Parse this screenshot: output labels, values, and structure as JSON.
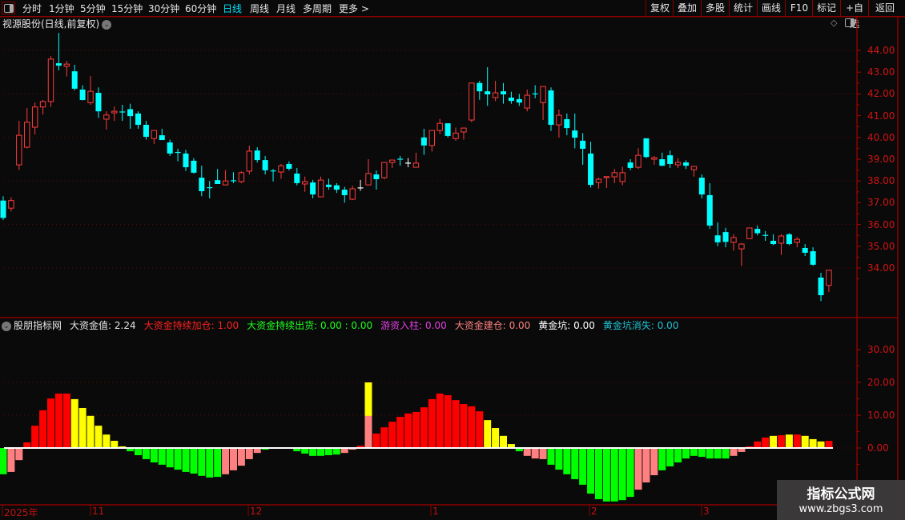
{
  "toolbar": {
    "periods": [
      "分时",
      "1分钟",
      "5分钟",
      "15分钟",
      "30分钟",
      "60分钟",
      "日线",
      "周线",
      "月线",
      "多周期",
      "更多 >"
    ],
    "active_period": "日线",
    "buttons": [
      "复权",
      "叠加",
      "多股",
      "统计",
      "画线",
      "F10",
      "标记",
      "+自选",
      "返回"
    ]
  },
  "chart": {
    "title": "视源股份(日线,前复权)",
    "price_ticks": [
      "44.00",
      "43.00",
      "42.00",
      "41.00",
      "40.00",
      "39.00",
      "38.00",
      "37.00",
      "36.00",
      "35.00",
      "34.00"
    ],
    "up_color": "#ff3c3c",
    "down_color": "#00ffff",
    "candles": [
      [
        37.1,
        37.3,
        36.2,
        36.3
      ],
      [
        36.75,
        37.25,
        36.6,
        37.1
      ],
      [
        38.74,
        40.76,
        38.5,
        40.1
      ],
      [
        39.55,
        41.35,
        39.5,
        40.7
      ],
      [
        40.47,
        41.6,
        40.14,
        41.4
      ],
      [
        41.4,
        41.72,
        41.06,
        41.65
      ],
      [
        41.65,
        43.74,
        41.4,
        43.6
      ],
      [
        43.41,
        44.8,
        43.08,
        43.3
      ],
      [
        43.27,
        43.52,
        42.8,
        43.37
      ],
      [
        43.04,
        43.34,
        42.16,
        42.24
      ],
      [
        42.2,
        42.4,
        41.7,
        41.72
      ],
      [
        41.6,
        42.82,
        41.5,
        42.12
      ],
      [
        42.05,
        42.3,
        40.9,
        41.2
      ],
      [
        40.84,
        41.2,
        40.36,
        41.03
      ],
      [
        41.13,
        41.42,
        40.76,
        41.2
      ],
      [
        41.17,
        41.5,
        40.76,
        41.16
      ],
      [
        41.3,
        41.55,
        40.4,
        40.98
      ],
      [
        41.1,
        41.2,
        40.4,
        40.58
      ],
      [
        40.58,
        40.76,
        39.9,
        40.03
      ],
      [
        39.95,
        40.32,
        39.7,
        40.32
      ],
      [
        40.1,
        40.4,
        39.88,
        39.88
      ],
      [
        39.77,
        39.9,
        39.15,
        39.26
      ],
      [
        39.31,
        39.48,
        38.9,
        39.3
      ],
      [
        39.26,
        39.43,
        38.46,
        38.63
      ],
      [
        38.93,
        39.05,
        38.34,
        38.38
      ],
      [
        38.15,
        38.7,
        37.3,
        37.53
      ],
      [
        37.69,
        38.0,
        37.2,
        37.68
      ],
      [
        38.04,
        38.55,
        37.86,
        37.86
      ],
      [
        37.82,
        38.5,
        37.8,
        38.0
      ],
      [
        38.01,
        38.4,
        37.9,
        38.0
      ],
      [
        37.97,
        38.45,
        37.9,
        38.38
      ],
      [
        38.45,
        39.62,
        38.3,
        39.37
      ],
      [
        39.4,
        39.55,
        38.85,
        38.96
      ],
      [
        38.96,
        39.15,
        38.3,
        38.49
      ],
      [
        38.46,
        38.55,
        37.98,
        38.45
      ],
      [
        38.41,
        38.78,
        38.1,
        38.7
      ],
      [
        38.78,
        38.9,
        38.48,
        38.56
      ],
      [
        38.34,
        38.6,
        37.8,
        37.9
      ],
      [
        37.86,
        38.2,
        37.5,
        37.97
      ],
      [
        37.93,
        38.05,
        37.2,
        37.38
      ],
      [
        37.27,
        38.2,
        37.25,
        38.04
      ],
      [
        37.83,
        38.1,
        37.6,
        37.72
      ],
      [
        37.8,
        37.9,
        37.45,
        37.6
      ],
      [
        37.6,
        37.73,
        37.0,
        37.35
      ],
      [
        37.16,
        37.78,
        37.12,
        37.64
      ],
      [
        37.68,
        38.05,
        37.55,
        37.68
      ],
      [
        37.82,
        39.0,
        37.8,
        38.34
      ],
      [
        38.3,
        38.48,
        37.6,
        38.08
      ],
      [
        38.15,
        38.85,
        38.08,
        38.85
      ],
      [
        38.85,
        38.98,
        38.6,
        38.96
      ],
      [
        39.0,
        39.15,
        38.7,
        38.99
      ],
      [
        38.82,
        39.05,
        38.63,
        38.82
      ],
      [
        38.63,
        39.3,
        38.63,
        38.82
      ],
      [
        40.0,
        40.4,
        39.2,
        39.63
      ],
      [
        39.63,
        40.32,
        39.35,
        40.32
      ],
      [
        40.32,
        40.85,
        40.15,
        40.65
      ],
      [
        40.65,
        40.65,
        40.0,
        40.07
      ],
      [
        39.95,
        40.45,
        39.85,
        40.2
      ],
      [
        40.25,
        40.45,
        39.9,
        40.43
      ],
      [
        40.8,
        42.5,
        40.7,
        42.5
      ],
      [
        42.5,
        42.6,
        41.73,
        42.12
      ],
      [
        42.12,
        43.23,
        41.45,
        41.98
      ],
      [
        41.83,
        42.6,
        41.67,
        42.05
      ],
      [
        42.12,
        42.5,
        41.55,
        41.98
      ],
      [
        41.83,
        42.1,
        41.55,
        41.68
      ],
      [
        41.76,
        42.0,
        41.45,
        41.6
      ],
      [
        41.35,
        42.2,
        41.2,
        41.94
      ],
      [
        42.0,
        42.4,
        41.8,
        41.99
      ],
      [
        41.6,
        42.34,
        40.8,
        42.34
      ],
      [
        42.16,
        42.3,
        40.3,
        40.58
      ],
      [
        40.58,
        41.28,
        39.99,
        41.02
      ],
      [
        40.84,
        41.1,
        40.1,
        40.43
      ],
      [
        40.32,
        41.1,
        39.5,
        39.99
      ],
      [
        39.85,
        40.2,
        38.74,
        39.48
      ],
      [
        39.26,
        39.8,
        37.7,
        37.82
      ],
      [
        37.93,
        38.15,
        37.65,
        38.08
      ],
      [
        38.15,
        38.2,
        37.68,
        38.2
      ],
      [
        38.19,
        38.55,
        37.9,
        38.38
      ],
      [
        37.97,
        38.65,
        37.8,
        38.38
      ],
      [
        38.85,
        39.0,
        38.5,
        38.6
      ],
      [
        38.63,
        39.5,
        38.55,
        39.18
      ],
      [
        39.96,
        39.96,
        39.05,
        39.1
      ],
      [
        39.0,
        39.15,
        38.75,
        39.07
      ],
      [
        39.0,
        39.3,
        38.68,
        38.7
      ],
      [
        39.18,
        39.4,
        38.6,
        38.78
      ],
      [
        38.74,
        39.05,
        38.6,
        38.85
      ],
      [
        38.85,
        38.95,
        38.55,
        38.7
      ],
      [
        38.52,
        38.67,
        38.2,
        38.67
      ],
      [
        38.15,
        38.3,
        37.2,
        37.38
      ],
      [
        37.35,
        37.9,
        35.8,
        35.95
      ],
      [
        35.5,
        36.1,
        35.0,
        35.18
      ],
      [
        35.65,
        35.85,
        34.95,
        35.2
      ],
      [
        35.18,
        35.55,
        34.8,
        35.4
      ],
      [
        34.88,
        35.15,
        34.1,
        35.1
      ],
      [
        35.35,
        35.84,
        35.35,
        35.84
      ],
      [
        35.8,
        35.95,
        35.5,
        35.6
      ],
      [
        35.5,
        35.7,
        35.25,
        35.49
      ],
      [
        35.25,
        35.55,
        35.05,
        35.1
      ],
      [
        35.14,
        35.55,
        34.6,
        35.47
      ],
      [
        35.55,
        35.6,
        35.05,
        35.1
      ],
      [
        35.18,
        35.42,
        34.95,
        35.32
      ],
      [
        34.92,
        35.1,
        34.55,
        34.7
      ],
      [
        34.77,
        34.95,
        34.1,
        34.15
      ],
      [
        33.56,
        33.78,
        32.48,
        32.75
      ],
      [
        33.2,
        33.9,
        32.9,
        33.9
      ]
    ],
    "white_crosses": [
      45,
      51
    ]
  },
  "indicator": {
    "name": "股朋指标网",
    "fields": [
      {
        "label": "大资金值: 2.24",
        "color": "#e6e6e6"
      },
      {
        "label": "大资金持续加仓: 1.00",
        "color": "#ff2020"
      },
      {
        "label": "大资金持续出货: 0.00 : 0.00",
        "color": "#20ff20"
      },
      {
        "label": "游资入柱: 0.00",
        "color": "#e040e0"
      },
      {
        "label": "大资金建仓: 0.00",
        "color": "#ff8080"
      },
      {
        "label": "黄金坑: 0.00",
        "color": "#ffffff"
      },
      {
        "label": "黄金坑消失: 0.00",
        "color": "#20c0d0"
      }
    ],
    "ticks": [
      "30.00",
      "20.00",
      "10.00",
      "0.00"
    ],
    "colors": {
      "R": "#ff0000",
      "Y": "#ffff00",
      "G": "#00ff00",
      "P": "#ff8080"
    },
    "bars": [
      [
        -8.0,
        "G"
      ],
      [
        -7.3,
        "P"
      ],
      [
        -3.7,
        "P"
      ],
      [
        1.7,
        "R"
      ],
      [
        6.8,
        "R"
      ],
      [
        11.5,
        "R"
      ],
      [
        15.1,
        "R"
      ],
      [
        16.6,
        "R"
      ],
      [
        16.6,
        "R"
      ],
      [
        14.9,
        "Y"
      ],
      [
        12.2,
        "Y"
      ],
      [
        9.8,
        "Y"
      ],
      [
        6.8,
        "Y"
      ],
      [
        4.1,
        "Y"
      ],
      [
        2.2,
        "Y"
      ],
      [
        0.5,
        "Y"
      ],
      [
        -1.0,
        "G"
      ],
      [
        -2.2,
        "G"
      ],
      [
        -3.4,
        "G"
      ],
      [
        -4.4,
        "G"
      ],
      [
        -5.1,
        "G"
      ],
      [
        -5.9,
        "G"
      ],
      [
        -6.6,
        "G"
      ],
      [
        -7.3,
        "G"
      ],
      [
        -7.8,
        "G"
      ],
      [
        -8.5,
        "G"
      ],
      [
        -9.0,
        "G"
      ],
      [
        -8.8,
        "G"
      ],
      [
        -8.0,
        "P"
      ],
      [
        -6.8,
        "P"
      ],
      [
        -5.4,
        "P"
      ],
      [
        -3.4,
        "P"
      ],
      [
        -1.5,
        "P"
      ],
      [
        -0.5,
        "G"
      ],
      [
        -0.2,
        "G"
      ],
      [
        0,
        "G"
      ],
      [
        0,
        "G"
      ],
      [
        -1.0,
        "G"
      ],
      [
        -1.7,
        "G"
      ],
      [
        -2.4,
        "G"
      ],
      [
        -2.4,
        "G"
      ],
      [
        -2.2,
        "G"
      ],
      [
        -2.0,
        "G"
      ],
      [
        -1.5,
        "P"
      ],
      [
        -0.5,
        "P"
      ],
      [
        0.7,
        "R"
      ],
      [
        20.0,
        "Y",
        9.8,
        "P"
      ],
      [
        4.4,
        "R"
      ],
      [
        6.3,
        "R"
      ],
      [
        8.0,
        "R"
      ],
      [
        9.5,
        "R"
      ],
      [
        10.5,
        "R"
      ],
      [
        11.0,
        "R"
      ],
      [
        12.4,
        "R"
      ],
      [
        14.9,
        "R"
      ],
      [
        16.6,
        "R"
      ],
      [
        16.1,
        "R"
      ],
      [
        14.6,
        "R"
      ],
      [
        13.4,
        "R"
      ],
      [
        12.7,
        "R"
      ],
      [
        11.2,
        "R"
      ],
      [
        8.5,
        "Y"
      ],
      [
        6.1,
        "Y"
      ],
      [
        3.7,
        "Y"
      ],
      [
        1.2,
        "Y"
      ],
      [
        -1.0,
        "G"
      ],
      [
        -2.4,
        "P"
      ],
      [
        -3.2,
        "P"
      ],
      [
        -3.4,
        "P"
      ],
      [
        -5.1,
        "G"
      ],
      [
        -6.6,
        "G"
      ],
      [
        -8.0,
        "G"
      ],
      [
        -9.5,
        "G"
      ],
      [
        -11.2,
        "G"
      ],
      [
        -13.9,
        "G"
      ],
      [
        -15.6,
        "G"
      ],
      [
        -16.3,
        "G"
      ],
      [
        -16.3,
        "G"
      ],
      [
        -15.9,
        "G"
      ],
      [
        -14.9,
        "G"
      ],
      [
        -12.7,
        "P"
      ],
      [
        -10.5,
        "P"
      ],
      [
        -8.3,
        "P"
      ],
      [
        -6.8,
        "G"
      ],
      [
        -5.6,
        "G"
      ],
      [
        -4.4,
        "G"
      ],
      [
        -3.2,
        "G"
      ],
      [
        -2.4,
        "G"
      ],
      [
        -2.7,
        "G"
      ],
      [
        -3.2,
        "G"
      ],
      [
        -3.2,
        "G"
      ],
      [
        -3.2,
        "G"
      ],
      [
        -2.4,
        "P"
      ],
      [
        -1.2,
        "P"
      ],
      [
        0.5,
        "R"
      ],
      [
        2.0,
        "R"
      ],
      [
        3.2,
        "R"
      ],
      [
        3.7,
        "Y"
      ],
      [
        3.9,
        "R"
      ],
      [
        4.1,
        "Y"
      ],
      [
        4.1,
        "R"
      ],
      [
        3.7,
        "Y"
      ],
      [
        2.7,
        "Y"
      ],
      [
        2.0,
        "Y"
      ],
      [
        2.2,
        "R"
      ]
    ]
  },
  "date_axis": {
    "labels": [
      "2025年",
      "11",
      "12",
      "1",
      "2",
      "3"
    ]
  },
  "watermark": {
    "line1": "指标公式网",
    "line2": "www.zbgs3.com"
  }
}
